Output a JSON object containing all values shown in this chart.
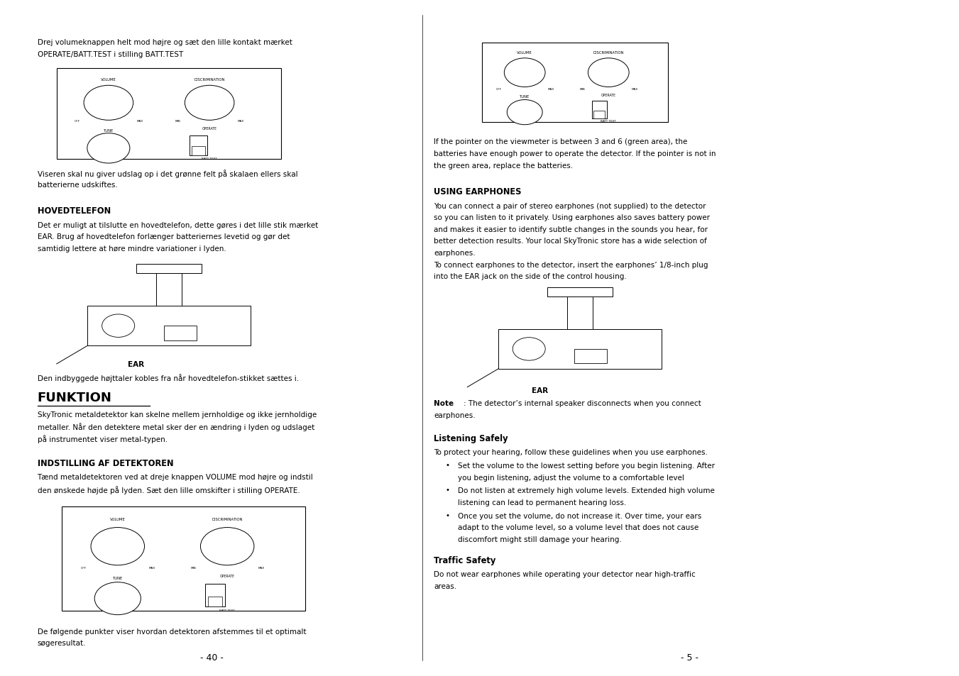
{
  "bg_color": "#ffffff",
  "left_col": {
    "para1_text": "Drej volumeknappen helt mod højre og sæt den lille kontakt mærket\nOPERATE/BATT.TEST i stilling BATT.TEST",
    "para2_text": "Viseren skal nu giver udslag op i det grønne felt på skalaen ellers skal\nbatterierne udskiftes.",
    "section1_title": "HOVEDTELEFON",
    "section1_body": "Det er muligt at tilslutte en hovedtelefon, dette gøres i det lille stik mærket\nEAR. Brug af hovedtelefon forlænger batteriernes levetid og gør det\nsamtidig lettere at høre mindre variationer i lyden.",
    "ear_label": "EAR",
    "ear_caption": "Den indbyggede højttaler kobles fra når hovedtelefon-stikket sættes i.",
    "section2_title": "FUNKTION",
    "section2_body": "SkyTronic metaldetektor kan skelne mellem jernholdige og ikke jernholdige\nmetaller. Når den detektere metal sker der en ændring i lyden og udslaget\npå instrumentet viser metal-typen.",
    "section3_title": "INDSTILLING AF DETEKTOREN",
    "section3_body": "Tænd metaldetektoren ved at dreje knappen VOLUME mod højre og indstil\nden ønskede højde på lyden. Sæt den lille omskifter i stilling OPERATE.",
    "para3_text": "De følgende punkter viser hvordan detektoren afstemmes til et optimalt\nsøgeresultat.",
    "page_num": "- 40 -"
  },
  "right_col": {
    "right_para1": "If the pointer on the viewmeter is between 3 and 6 (green area), the\nbatteries have enough power to operate the detector. If the pointer is not in\nthe green area, replace the batteries.",
    "section1_title": "USING EARPHONES",
    "section1_body": "You can connect a pair of stereo earphones (not supplied) to the detector\nso you can listen to it privately. Using earphones also saves battery power\nand makes it easier to identify subtle changes in the sounds you hear, for\nbetter detection results. Your local SkyTronic store has a wide selection of\nearphones.\nTo connect earphones to the detector, insert the earphones’ 1/8-inch plug\ninto the EAR jack on the side of the control housing.",
    "ear_label": "EAR",
    "ear_note_bold": "Note",
    "ear_note_rest": ": The detector’s internal speaker disconnects when you connect\nearphones.",
    "section2_title": "Listening Safely",
    "section2_body": "To protect your hearing, follow these guidelines when you use earphones.",
    "bullet1": "Set the volume to the lowest setting before you begin listening. After\nyou begin listening, adjust the volume to a comfortable level",
    "bullet2": "Do not listen at extremely high volume levels. Extended high volume\nlistening can lead to permanent hearing loss.",
    "bullet3": "Once you set the volume, do not increase it. Over time, your ears\nadapt to the volume level, so a volume level that does not cause\ndiscomfort might still damage your hearing.",
    "section3_title": "Traffic Safety",
    "section3_body": "Do not wear earphones while operating your detector near high-traffic\nareas.",
    "page_num": "- 5 -"
  }
}
